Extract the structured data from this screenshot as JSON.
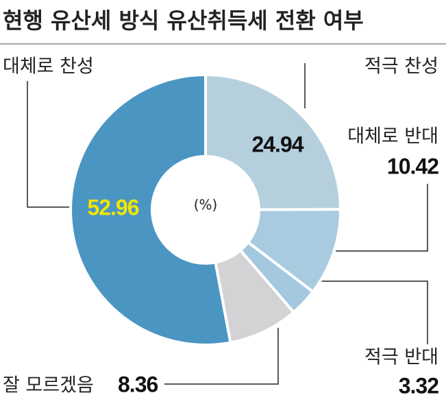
{
  "chart_data": {
    "type": "donut",
    "title": "현행 유산세 방식 유산취득세 전환 여부",
    "center_label": "(%)",
    "categories": [
      "적극 찬성",
      "대체로 반대",
      "적극 반대",
      "잘 모르겠음",
      "대체로 찬성"
    ],
    "values": [
      24.94,
      10.42,
      3.32,
      8.36,
      52.96
    ],
    "colors": [
      "#b5cfdd",
      "#a9cbdf",
      "#a4c8de",
      "#d3d3d5",
      "#4b95c3"
    ]
  }
}
